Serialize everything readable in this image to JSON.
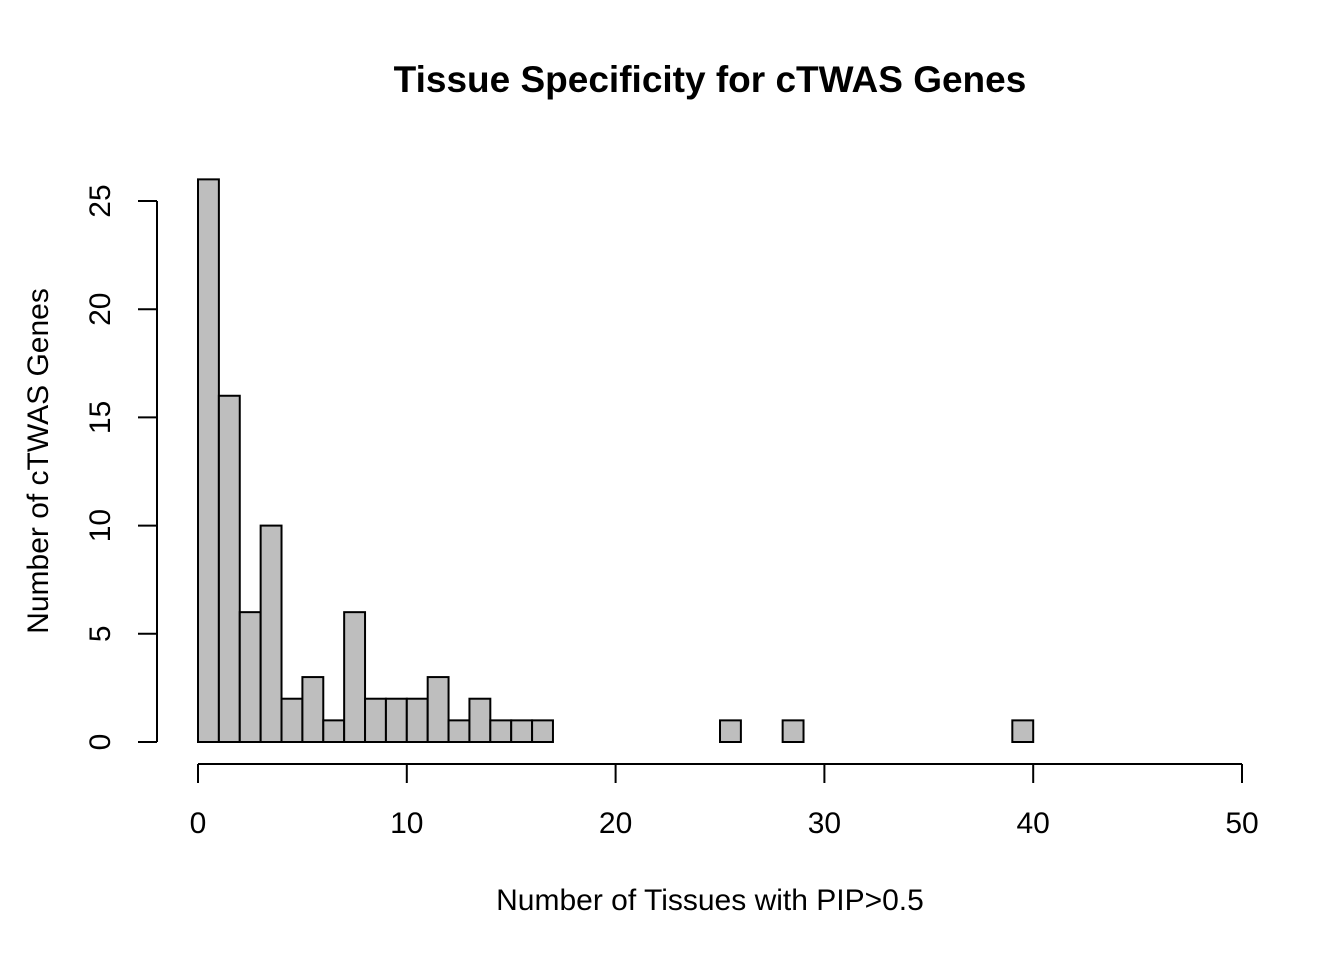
{
  "chart_data": {
    "type": "bar",
    "title": "Tissue Specificity for cTWAS Genes",
    "xlabel": "Number of Tissues with PIP>0.5",
    "ylabel": "Number of cTWAS Genes",
    "xlim": [
      0,
      50
    ],
    "ylim": [
      0,
      26
    ],
    "bin_width": 1,
    "bins": [
      {
        "start": 0,
        "end": 1,
        "value": 26
      },
      {
        "start": 1,
        "end": 2,
        "value": 16
      },
      {
        "start": 2,
        "end": 3,
        "value": 6
      },
      {
        "start": 3,
        "end": 4,
        "value": 10
      },
      {
        "start": 4,
        "end": 5,
        "value": 2
      },
      {
        "start": 5,
        "end": 6,
        "value": 3
      },
      {
        "start": 6,
        "end": 7,
        "value": 1
      },
      {
        "start": 7,
        "end": 8,
        "value": 6
      },
      {
        "start": 8,
        "end": 9,
        "value": 2
      },
      {
        "start": 9,
        "end": 10,
        "value": 2
      },
      {
        "start": 10,
        "end": 11,
        "value": 2
      },
      {
        "start": 11,
        "end": 12,
        "value": 3
      },
      {
        "start": 12,
        "end": 13,
        "value": 1
      },
      {
        "start": 13,
        "end": 14,
        "value": 2
      },
      {
        "start": 14,
        "end": 15,
        "value": 1
      },
      {
        "start": 15,
        "end": 16,
        "value": 1
      },
      {
        "start": 16,
        "end": 17,
        "value": 1
      },
      {
        "start": 17,
        "end": 18,
        "value": 0
      },
      {
        "start": 18,
        "end": 19,
        "value": 0
      },
      {
        "start": 19,
        "end": 20,
        "value": 0
      },
      {
        "start": 20,
        "end": 21,
        "value": 0
      },
      {
        "start": 21,
        "end": 22,
        "value": 0
      },
      {
        "start": 22,
        "end": 23,
        "value": 0
      },
      {
        "start": 23,
        "end": 24,
        "value": 0
      },
      {
        "start": 24,
        "end": 25,
        "value": 0
      },
      {
        "start": 25,
        "end": 26,
        "value": 1
      },
      {
        "start": 26,
        "end": 27,
        "value": 0
      },
      {
        "start": 27,
        "end": 28,
        "value": 0
      },
      {
        "start": 28,
        "end": 29,
        "value": 1
      },
      {
        "start": 29,
        "end": 30,
        "value": 0
      },
      {
        "start": 30,
        "end": 31,
        "value": 0
      },
      {
        "start": 31,
        "end": 32,
        "value": 0
      },
      {
        "start": 32,
        "end": 33,
        "value": 0
      },
      {
        "start": 33,
        "end": 34,
        "value": 0
      },
      {
        "start": 34,
        "end": 35,
        "value": 0
      },
      {
        "start": 35,
        "end": 36,
        "value": 0
      },
      {
        "start": 36,
        "end": 37,
        "value": 0
      },
      {
        "start": 37,
        "end": 38,
        "value": 0
      },
      {
        "start": 38,
        "end": 39,
        "value": 0
      },
      {
        "start": 39,
        "end": 40,
        "value": 1
      }
    ],
    "x_ticks": [
      0,
      10,
      20,
      30,
      40,
      50
    ],
    "x_tick_labels": [
      "0",
      "10",
      "20",
      "30",
      "40",
      "50"
    ],
    "y_ticks": [
      0,
      5,
      10,
      15,
      20,
      25
    ],
    "y_tick_labels": [
      "0",
      "5",
      "10",
      "15",
      "20",
      "25"
    ],
    "bar_color": "#bebebe",
    "edge_color": "#000000",
    "grid": false,
    "legend": "none"
  }
}
